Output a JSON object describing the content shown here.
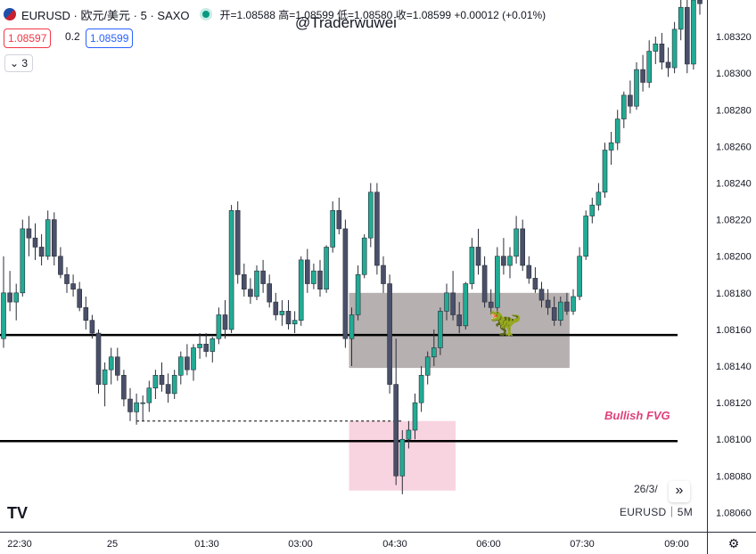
{
  "header": {
    "symbol": "EURUSD · 欧元/美元 · 5 · SAXO",
    "ohlc_text": "开=1.08588 高=1.08599 低=1.08580 收=1.08599 +0.00012 (+0.01%)",
    "sell_price": "1.08597",
    "spread": "0.2",
    "buy_price": "1.08599",
    "indicators_collapsed": "3"
  },
  "watermark": "@Traderwuwei",
  "footer": {
    "date": "26/3/",
    "symbol_interval": "EURUSD｜5M",
    "logo": "TV"
  },
  "icons": {
    "dinosaur": "🦖",
    "scroll_right": "»",
    "settings": "⚙",
    "collapse_chevron": "⌄"
  },
  "colors": {
    "up": "#22ab94",
    "down": "#4a5069",
    "fvg_zone": "#f8d4e0",
    "ob_zone": "#b2acac",
    "fvg_text": "#e0407a"
  },
  "chart_data": {
    "type": "candlestick",
    "title": "EURUSD · 欧元/美元 · 5 · SAXO",
    "ylim": [
      1.0805,
      1.0834
    ],
    "y_ticks": [
      1.0806,
      1.0808,
      1.081,
      1.0812,
      1.0814,
      1.0816,
      1.0818,
      1.082,
      1.0822,
      1.0824,
      1.0826,
      1.0828,
      1.083,
      1.0832
    ],
    "x_ticks": [
      "22:30",
      "25",
      "01:30",
      "03:00",
      "04:30",
      "06:00",
      "07:30",
      "09:00"
    ],
    "candles": [
      [
        1.08155,
        1.082,
        1.0815,
        1.0818
      ],
      [
        1.0818,
        1.08192,
        1.0817,
        1.08175
      ],
      [
        1.08175,
        1.08185,
        1.08165,
        1.0818
      ],
      [
        1.0818,
        1.0822,
        1.08178,
        1.08215
      ],
      [
        1.08215,
        1.08222,
        1.082,
        1.0821
      ],
      [
        1.0821,
        1.08218,
        1.08198,
        1.08205
      ],
      [
        1.08205,
        1.08212,
        1.08195,
        1.082
      ],
      [
        1.082,
        1.08225,
        1.08198,
        1.0822
      ],
      [
        1.0822,
        1.08224,
        1.08195,
        1.082
      ],
      [
        1.082,
        1.08205,
        1.08188,
        1.0819
      ],
      [
        1.0819,
        1.08194,
        1.0818,
        1.08185
      ],
      [
        1.08185,
        1.0819,
        1.08178,
        1.08182
      ],
      [
        1.08182,
        1.08186,
        1.0817,
        1.08172
      ],
      [
        1.08172,
        1.08178,
        1.0816,
        1.08165
      ],
      [
        1.08165,
        1.08168,
        1.08155,
        1.08158
      ],
      [
        1.08158,
        1.0816,
        1.08125,
        1.0813
      ],
      [
        1.0813,
        1.08142,
        1.08118,
        1.08138
      ],
      [
        1.08138,
        1.0815,
        1.0813,
        1.08145
      ],
      [
        1.08145,
        1.0815,
        1.08132,
        1.08135
      ],
      [
        1.08135,
        1.08138,
        1.08118,
        1.08122
      ],
      [
        1.08122,
        1.08128,
        1.0811,
        1.08115
      ],
      [
        1.08115,
        1.08125,
        1.08108,
        1.0812
      ],
      [
        1.0812,
        1.08124,
        1.0811,
        1.0812
      ],
      [
        1.0812,
        1.08132,
        1.08115,
        1.08128
      ],
      [
        1.08128,
        1.08138,
        1.08122,
        1.08135
      ],
      [
        1.08135,
        1.08142,
        1.08126,
        1.0813
      ],
      [
        1.0813,
        1.08136,
        1.0812,
        1.08125
      ],
      [
        1.08125,
        1.08138,
        1.08122,
        1.08135
      ],
      [
        1.08135,
        1.08148,
        1.0813,
        1.08145
      ],
      [
        1.08145,
        1.08152,
        1.08135,
        1.08138
      ],
      [
        1.08138,
        1.08152,
        1.08132,
        1.0815
      ],
      [
        1.0815,
        1.08158,
        1.08144,
        1.08152
      ],
      [
        1.08152,
        1.08158,
        1.08145,
        1.08148
      ],
      [
        1.08148,
        1.08156,
        1.08142,
        1.08155
      ],
      [
        1.08155,
        1.08172,
        1.08152,
        1.08168
      ],
      [
        1.08168,
        1.08176,
        1.08155,
        1.0816
      ],
      [
        1.0816,
        1.08228,
        1.08158,
        1.08225
      ],
      [
        1.08225,
        1.0823,
        1.08185,
        1.0819
      ],
      [
        1.0819,
        1.08196,
        1.08178,
        1.08182
      ],
      [
        1.08182,
        1.08188,
        1.08174,
        1.08178
      ],
      [
        1.08178,
        1.08195,
        1.08176,
        1.08192
      ],
      [
        1.08192,
        1.08198,
        1.0818,
        1.08185
      ],
      [
        1.08185,
        1.0819,
        1.08172,
        1.08175
      ],
      [
        1.08175,
        1.0818,
        1.08165,
        1.08168
      ],
      [
        1.08168,
        1.08176,
        1.08162,
        1.0817
      ],
      [
        1.0817,
        1.08176,
        1.0816,
        1.08163
      ],
      [
        1.08163,
        1.0817,
        1.08158,
        1.08165
      ],
      [
        1.08165,
        1.082,
        1.08162,
        1.08198
      ],
      [
        1.08198,
        1.08204,
        1.0818,
        1.08185
      ],
      [
        1.08185,
        1.08196,
        1.08182,
        1.08192
      ],
      [
        1.08192,
        1.08198,
        1.08178,
        1.08182
      ],
      [
        1.08182,
        1.08206,
        1.0818,
        1.08205
      ],
      [
        1.08205,
        1.0823,
        1.08202,
        1.08225
      ],
      [
        1.08225,
        1.08232,
        1.08212,
        1.08215
      ],
      [
        1.08215,
        1.0822,
        1.0815,
        1.08155
      ],
      [
        1.08155,
        1.08172,
        1.0814,
        1.08168
      ],
      [
        1.08168,
        1.08195,
        1.08165,
        1.0819
      ],
      [
        1.0819,
        1.08212,
        1.08188,
        1.0821
      ],
      [
        1.0821,
        1.0824,
        1.08205,
        1.08235
      ],
      [
        1.08235,
        1.0824,
        1.0819,
        1.08195
      ],
      [
        1.08195,
        1.082,
        1.0818,
        1.08185
      ],
      [
        1.08185,
        1.0819,
        1.08125,
        1.0813
      ],
      [
        1.0813,
        1.08155,
        1.08075,
        1.0808
      ],
      [
        1.0808,
        1.08105,
        1.0807,
        1.081
      ],
      [
        1.081,
        1.0811,
        1.08095,
        1.08105
      ],
      [
        1.08105,
        1.08125,
        1.081,
        1.0812
      ],
      [
        1.0812,
        1.0814,
        1.08115,
        1.08135
      ],
      [
        1.08135,
        1.08148,
        1.0813,
        1.08145
      ],
      [
        1.08145,
        1.0816,
        1.0814,
        1.0815
      ],
      [
        1.0815,
        1.08172,
        1.08146,
        1.0817
      ],
      [
        1.0817,
        1.08185,
        1.08165,
        1.0818
      ],
      [
        1.0818,
        1.08192,
        1.08165,
        1.08168
      ],
      [
        1.08168,
        1.08175,
        1.08158,
        1.08162
      ],
      [
        1.08162,
        1.08186,
        1.0816,
        1.08185
      ],
      [
        1.08185,
        1.0821,
        1.08182,
        1.08205
      ],
      [
        1.08205,
        1.08215,
        1.0819,
        1.08195
      ],
      [
        1.08195,
        1.082,
        1.08172,
        1.08175
      ],
      [
        1.08175,
        1.08182,
        1.08168,
        1.08172
      ],
      [
        1.08172,
        1.08205,
        1.0817,
        1.082
      ],
      [
        1.082,
        1.0821,
        1.0819,
        1.08195
      ],
      [
        1.08195,
        1.08205,
        1.08188,
        1.082
      ],
      [
        1.082,
        1.08222,
        1.08196,
        1.08215
      ],
      [
        1.08215,
        1.0822,
        1.08192,
        1.08195
      ],
      [
        1.08195,
        1.082,
        1.08185,
        1.08188
      ],
      [
        1.08188,
        1.08194,
        1.0818,
        1.08182
      ],
      [
        1.08182,
        1.08186,
        1.08172,
        1.08176
      ],
      [
        1.08176,
        1.08182,
        1.08168,
        1.08172
      ],
      [
        1.08172,
        1.08178,
        1.08162,
        1.08165
      ],
      [
        1.08165,
        1.08178,
        1.08162,
        1.08175
      ],
      [
        1.08175,
        1.0818,
        1.08168,
        1.0817
      ],
      [
        1.0817,
        1.08182,
        1.08168,
        1.08178
      ],
      [
        1.08178,
        1.08205,
        1.08176,
        1.082
      ],
      [
        1.082,
        1.08225,
        1.08198,
        1.08222
      ],
      [
        1.08222,
        1.08232,
        1.08218,
        1.08228
      ],
      [
        1.08228,
        1.0824,
        1.08225,
        1.08235
      ],
      [
        1.08235,
        1.08262,
        1.08232,
        1.08258
      ],
      [
        1.08258,
        1.08268,
        1.0825,
        1.08262
      ],
      [
        1.08262,
        1.0828,
        1.08258,
        1.08275
      ],
      [
        1.08275,
        1.0829,
        1.0827,
        1.08288
      ],
      [
        1.08288,
        1.08296,
        1.08278,
        1.08282
      ],
      [
        1.08282,
        1.08306,
        1.0828,
        1.08302
      ],
      [
        1.08302,
        1.0831,
        1.0829,
        1.08295
      ],
      [
        1.08295,
        1.08318,
        1.08292,
        1.08312
      ],
      [
        1.08312,
        1.0832,
        1.08305,
        1.08316
      ],
      [
        1.08316,
        1.08322,
        1.08302,
        1.08306
      ],
      [
        1.08306,
        1.08314,
        1.08298,
        1.08303
      ],
      [
        1.08303,
        1.08328,
        1.083,
        1.08324
      ],
      [
        1.08324,
        1.08342,
        1.08318,
        1.08336
      ],
      [
        1.08336,
        1.0834,
        1.083,
        1.08305
      ],
      [
        1.08305,
        1.08345,
        1.08302,
        1.0834
      ],
      [
        1.0834,
        1.08348,
        1.08332,
        1.08338
      ],
      [
        1.08338,
        1.08342,
        1.08285,
        1.0829
      ]
    ],
    "horizontal_lines": [
      1.08157,
      1.08099
    ],
    "dashed_line": {
      "price": 1.0811,
      "from_candle": 21,
      "to_candle": 63
    },
    "zones": [
      {
        "name": "ob",
        "from_candle": 55,
        "to_candle": 89,
        "top": 1.0818,
        "bottom": 1.08139
      },
      {
        "name": "fvg",
        "from_candle": 55,
        "to_candle": 71,
        "top": 1.0811,
        "bottom": 1.08072
      }
    ],
    "annotation": "Bullish FVG"
  }
}
